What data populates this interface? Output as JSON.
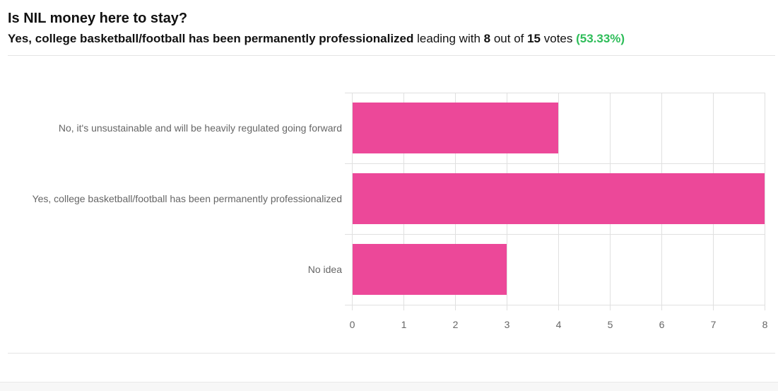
{
  "poll": {
    "question": "Is NIL money here to stay?",
    "leader_label": "Yes, college basketball/football has been permanently professionalized",
    "leading_with_text": " leading with ",
    "leader_votes": "8",
    "out_of_text": " out of ",
    "total_votes": "15",
    "votes_text": " votes ",
    "leader_percent": "(53.33%)"
  },
  "colors": {
    "bar": "#ec4899",
    "grid": "#e0e0e0",
    "tick_text": "#666666",
    "percent": "#2ebd59"
  },
  "chart_data": {
    "type": "bar",
    "orientation": "horizontal",
    "categories": [
      "No, it's unsustainable and will be heavily regulated going forward",
      "Yes, college basketball/football has been permanently professionalized",
      "No idea"
    ],
    "values": [
      4,
      8,
      3
    ],
    "xlim": [
      0,
      8
    ],
    "xticks": [
      0,
      1,
      2,
      3,
      4,
      5,
      6,
      7,
      8
    ],
    "grid": true,
    "title": "",
    "xlabel": "",
    "ylabel": ""
  }
}
